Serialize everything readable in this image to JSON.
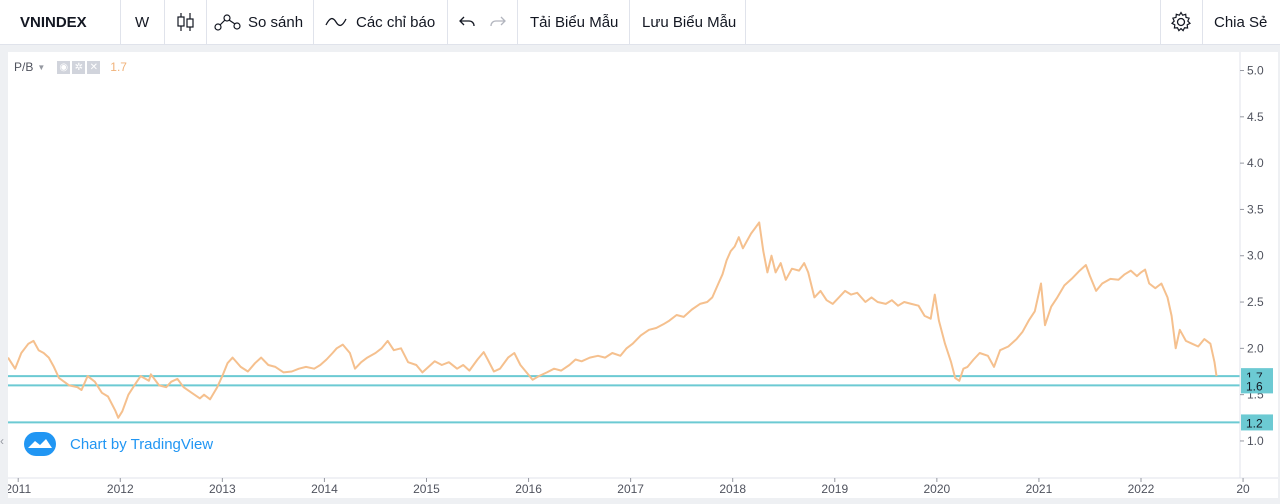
{
  "toolbar": {
    "symbol": "VNINDEX",
    "interval": "W",
    "compare_label": "So sánh",
    "indicators_label": "Các chỉ báo",
    "load_template_label": "Tải Biểu Mẫu",
    "save_template_label": "Lưu Biểu Mẫu",
    "share_label": "Chia Sẻ"
  },
  "legend": {
    "name": "P/B",
    "value": "1.7",
    "value_color": "#f0b27a"
  },
  "watermark": "Chart by TradingView",
  "colors": {
    "line": "#f5c08e",
    "hline": "#6ccad3",
    "badge_bg": "#6ccad3",
    "accent": "#2196f3"
  },
  "chart_data": {
    "type": "line",
    "title": "",
    "xlabel": "",
    "ylabel": "",
    "x_ticks": [
      "2011",
      "2012",
      "2013",
      "2014",
      "2015",
      "2016",
      "2017",
      "2018",
      "2019",
      "2020",
      "2021",
      "2022",
      "20"
    ],
    "y_ticks": [
      "1.0",
      "1.5",
      "2.0",
      "2.5",
      "3.0",
      "3.5",
      "4.0",
      "4.5",
      "5.0"
    ],
    "ylim": [
      0.6,
      5.2
    ],
    "xlim": [
      2010.9,
      2022.97
    ],
    "grid": false,
    "horizontal_lines": [
      {
        "y": 1.7,
        "label": "1.7"
      },
      {
        "y": 1.6,
        "label": "1.6"
      },
      {
        "y": 1.2,
        "label": "1.2"
      }
    ],
    "series": [
      {
        "points": [
          [
            2010.9,
            1.9
          ],
          [
            2010.97,
            1.78
          ],
          [
            2011.03,
            1.95
          ],
          [
            2011.1,
            2.05
          ],
          [
            2011.15,
            2.08
          ],
          [
            2011.2,
            1.98
          ],
          [
            2011.25,
            1.95
          ],
          [
            2011.3,
            1.9
          ],
          [
            2011.35,
            1.8
          ],
          [
            2011.4,
            1.68
          ],
          [
            2011.5,
            1.6
          ],
          [
            2011.58,
            1.58
          ],
          [
            2011.62,
            1.55
          ],
          [
            2011.68,
            1.7
          ],
          [
            2011.75,
            1.64
          ],
          [
            2011.82,
            1.52
          ],
          [
            2011.88,
            1.48
          ],
          [
            2011.95,
            1.33
          ],
          [
            2011.98,
            1.25
          ],
          [
            2012.02,
            1.32
          ],
          [
            2012.08,
            1.5
          ],
          [
            2012.15,
            1.62
          ],
          [
            2012.2,
            1.7
          ],
          [
            2012.28,
            1.65
          ],
          [
            2012.3,
            1.72
          ],
          [
            2012.38,
            1.6
          ],
          [
            2012.45,
            1.58
          ],
          [
            2012.5,
            1.64
          ],
          [
            2012.56,
            1.67
          ],
          [
            2012.62,
            1.58
          ],
          [
            2012.7,
            1.52
          ],
          [
            2012.78,
            1.46
          ],
          [
            2012.82,
            1.5
          ],
          [
            2012.88,
            1.45
          ],
          [
            2012.95,
            1.58
          ],
          [
            2013.0,
            1.7
          ],
          [
            2013.05,
            1.84
          ],
          [
            2013.1,
            1.9
          ],
          [
            2013.18,
            1.8
          ],
          [
            2013.25,
            1.75
          ],
          [
            2013.32,
            1.84
          ],
          [
            2013.38,
            1.9
          ],
          [
            2013.45,
            1.82
          ],
          [
            2013.52,
            1.8
          ],
          [
            2013.6,
            1.74
          ],
          [
            2013.68,
            1.75
          ],
          [
            2013.75,
            1.78
          ],
          [
            2013.82,
            1.8
          ],
          [
            2013.9,
            1.78
          ],
          [
            2013.96,
            1.82
          ],
          [
            2014.02,
            1.88
          ],
          [
            2014.08,
            1.95
          ],
          [
            2014.12,
            2.0
          ],
          [
            2014.18,
            2.04
          ],
          [
            2014.25,
            1.95
          ],
          [
            2014.3,
            1.78
          ],
          [
            2014.36,
            1.85
          ],
          [
            2014.42,
            1.9
          ],
          [
            2014.5,
            1.95
          ],
          [
            2014.56,
            2.0
          ],
          [
            2014.62,
            2.08
          ],
          [
            2014.68,
            1.98
          ],
          [
            2014.75,
            2.0
          ],
          [
            2014.82,
            1.85
          ],
          [
            2014.9,
            1.82
          ],
          [
            2014.96,
            1.74
          ],
          [
            2015.02,
            1.8
          ],
          [
            2015.08,
            1.86
          ],
          [
            2015.15,
            1.82
          ],
          [
            2015.22,
            1.85
          ],
          [
            2015.3,
            1.78
          ],
          [
            2015.36,
            1.82
          ],
          [
            2015.42,
            1.76
          ],
          [
            2015.5,
            1.88
          ],
          [
            2015.56,
            1.96
          ],
          [
            2015.6,
            1.88
          ],
          [
            2015.66,
            1.75
          ],
          [
            2015.72,
            1.78
          ],
          [
            2015.8,
            1.9
          ],
          [
            2015.86,
            1.95
          ],
          [
            2015.92,
            1.82
          ],
          [
            2015.98,
            1.74
          ],
          [
            2016.04,
            1.66
          ],
          [
            2016.1,
            1.7
          ],
          [
            2016.18,
            1.74
          ],
          [
            2016.25,
            1.78
          ],
          [
            2016.32,
            1.76
          ],
          [
            2016.4,
            1.82
          ],
          [
            2016.46,
            1.88
          ],
          [
            2016.52,
            1.86
          ],
          [
            2016.6,
            1.9
          ],
          [
            2016.68,
            1.92
          ],
          [
            2016.75,
            1.9
          ],
          [
            2016.82,
            1.95
          ],
          [
            2016.9,
            1.92
          ],
          [
            2016.96,
            2.0
          ],
          [
            2017.02,
            2.05
          ],
          [
            2017.1,
            2.14
          ],
          [
            2017.18,
            2.2
          ],
          [
            2017.25,
            2.22
          ],
          [
            2017.32,
            2.26
          ],
          [
            2017.38,
            2.3
          ],
          [
            2017.45,
            2.36
          ],
          [
            2017.52,
            2.34
          ],
          [
            2017.6,
            2.42
          ],
          [
            2017.68,
            2.48
          ],
          [
            2017.75,
            2.5
          ],
          [
            2017.8,
            2.55
          ],
          [
            2017.86,
            2.7
          ],
          [
            2017.9,
            2.8
          ],
          [
            2017.94,
            2.95
          ],
          [
            2017.98,
            3.05
          ],
          [
            2018.02,
            3.1
          ],
          [
            2018.06,
            3.2
          ],
          [
            2018.1,
            3.08
          ],
          [
            2018.14,
            3.16
          ],
          [
            2018.18,
            3.24
          ],
          [
            2018.22,
            3.3
          ],
          [
            2018.26,
            3.36
          ],
          [
            2018.3,
            3.05
          ],
          [
            2018.34,
            2.82
          ],
          [
            2018.38,
            3.0
          ],
          [
            2018.42,
            2.82
          ],
          [
            2018.47,
            2.92
          ],
          [
            2018.52,
            2.74
          ],
          [
            2018.58,
            2.86
          ],
          [
            2018.65,
            2.84
          ],
          [
            2018.7,
            2.92
          ],
          [
            2018.74,
            2.82
          ],
          [
            2018.8,
            2.55
          ],
          [
            2018.86,
            2.62
          ],
          [
            2018.92,
            2.52
          ],
          [
            2018.98,
            2.48
          ],
          [
            2019.04,
            2.55
          ],
          [
            2019.1,
            2.62
          ],
          [
            2019.16,
            2.58
          ],
          [
            2019.22,
            2.6
          ],
          [
            2019.3,
            2.5
          ],
          [
            2019.36,
            2.55
          ],
          [
            2019.42,
            2.5
          ],
          [
            2019.5,
            2.48
          ],
          [
            2019.56,
            2.52
          ],
          [
            2019.62,
            2.46
          ],
          [
            2019.68,
            2.5
          ],
          [
            2019.75,
            2.48
          ],
          [
            2019.82,
            2.46
          ],
          [
            2019.88,
            2.35
          ],
          [
            2019.94,
            2.32
          ],
          [
            2019.98,
            2.58
          ],
          [
            2020.02,
            2.3
          ],
          [
            2020.08,
            2.05
          ],
          [
            2020.14,
            1.85
          ],
          [
            2020.18,
            1.68
          ],
          [
            2020.22,
            1.65
          ],
          [
            2020.26,
            1.78
          ],
          [
            2020.3,
            1.8
          ],
          [
            2020.36,
            1.88
          ],
          [
            2020.42,
            1.95
          ],
          [
            2020.5,
            1.92
          ],
          [
            2020.56,
            1.8
          ],
          [
            2020.62,
            1.98
          ],
          [
            2020.7,
            2.02
          ],
          [
            2020.78,
            2.1
          ],
          [
            2020.84,
            2.18
          ],
          [
            2020.9,
            2.3
          ],
          [
            2020.96,
            2.4
          ],
          [
            2021.02,
            2.7
          ],
          [
            2021.06,
            2.25
          ],
          [
            2021.12,
            2.45
          ],
          [
            2021.18,
            2.55
          ],
          [
            2021.25,
            2.68
          ],
          [
            2021.32,
            2.75
          ],
          [
            2021.4,
            2.84
          ],
          [
            2021.46,
            2.9
          ],
          [
            2021.5,
            2.78
          ],
          [
            2021.56,
            2.62
          ],
          [
            2021.62,
            2.7
          ],
          [
            2021.7,
            2.75
          ],
          [
            2021.78,
            2.74
          ],
          [
            2021.84,
            2.8
          ],
          [
            2021.9,
            2.84
          ],
          [
            2021.96,
            2.78
          ],
          [
            2022.0,
            2.82
          ],
          [
            2022.04,
            2.85
          ],
          [
            2022.08,
            2.7
          ],
          [
            2022.14,
            2.65
          ],
          [
            2022.2,
            2.7
          ],
          [
            2022.26,
            2.55
          ],
          [
            2022.3,
            2.35
          ],
          [
            2022.34,
            2.0
          ],
          [
            2022.38,
            2.2
          ],
          [
            2022.44,
            2.08
          ],
          [
            2022.5,
            2.05
          ],
          [
            2022.56,
            2.02
          ],
          [
            2022.62,
            2.1
          ],
          [
            2022.68,
            2.05
          ],
          [
            2022.72,
            1.85
          ],
          [
            2022.74,
            1.7
          ]
        ]
      }
    ]
  }
}
